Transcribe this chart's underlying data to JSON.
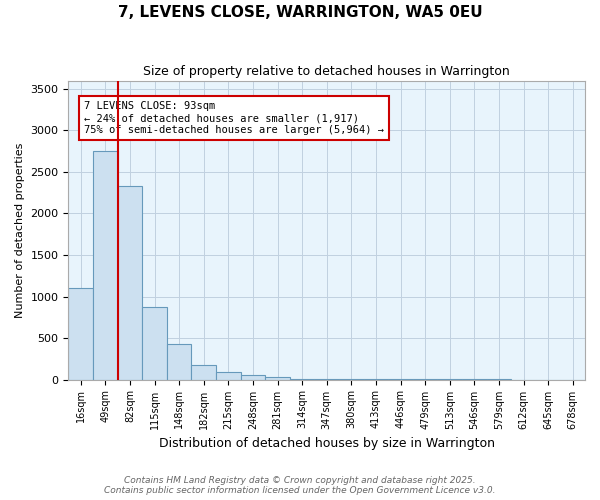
{
  "title_line1": "7, LEVENS CLOSE, WARRINGTON, WA5 0EU",
  "title_line2": "Size of property relative to detached houses in Warrington",
  "xlabel": "Distribution of detached houses by size in Warrington",
  "ylabel": "Number of detached properties",
  "footer_line1": "Contains HM Land Registry data © Crown copyright and database right 2025.",
  "footer_line2": "Contains public sector information licensed under the Open Government Licence v3.0.",
  "annotation_line1": "7 LEVENS CLOSE: 93sqm",
  "annotation_line2": "← 24% of detached houses are smaller (1,917)",
  "annotation_line3": "75% of semi-detached houses are larger (5,964) →",
  "property_size": 93,
  "bar_color": "#cce0f0",
  "bar_edge_color": "#6699bb",
  "red_line_color": "#cc0000",
  "annotation_box_color": "#cc0000",
  "grid_color": "#c0d0e0",
  "background_color": "#e8f4fc",
  "bin_labels": [
    "16sqm",
    "49sqm",
    "82sqm",
    "115sqm",
    "148sqm",
    "182sqm",
    "215sqm",
    "248sqm",
    "281sqm",
    "314sqm",
    "347sqm",
    "380sqm",
    "413sqm",
    "446sqm",
    "479sqm",
    "513sqm",
    "546sqm",
    "579sqm",
    "612sqm",
    "645sqm",
    "678sqm"
  ],
  "counts": [
    1100,
    2750,
    2330,
    870,
    430,
    175,
    90,
    50,
    30,
    10,
    5,
    3,
    2,
    2,
    1,
    1,
    1,
    1,
    0,
    0,
    0
  ],
  "ylim": [
    0,
    3600
  ],
  "yticks": [
    0,
    500,
    1000,
    1500,
    2000,
    2500,
    3000,
    3500
  ]
}
